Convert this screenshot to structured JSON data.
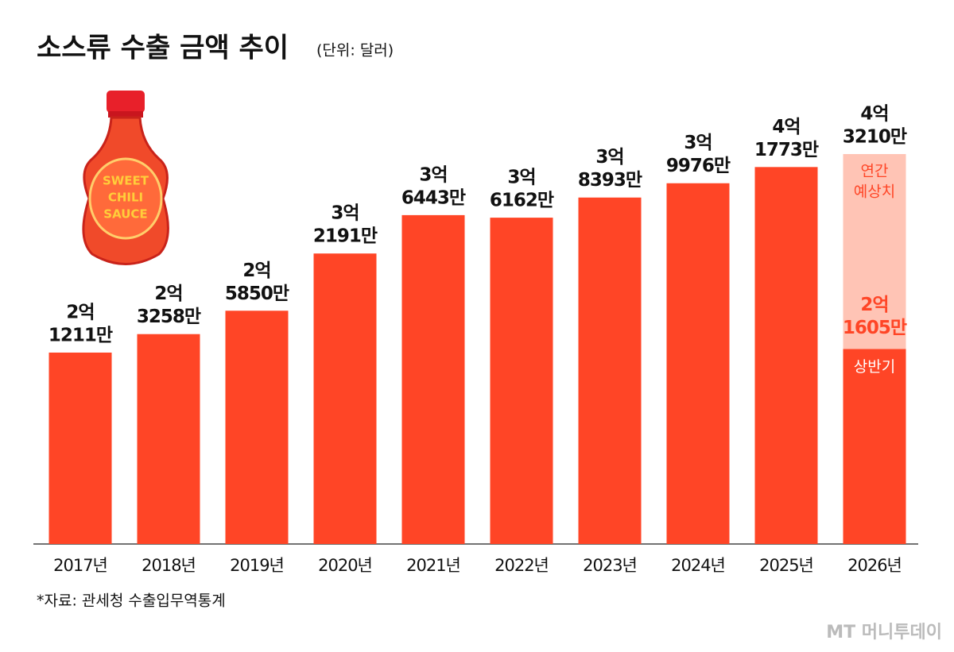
{
  "chart_data": {
    "type": "bar",
    "title": "소스류 수출 금액 추이",
    "subtitle": "(단위: 달러)",
    "source": "*자료: 관세청 수출입무역통계",
    "watermark": "MT 머니투데이",
    "bottle_text": [
      "SWEET",
      "CHILI",
      "SAUCE"
    ],
    "categories": [
      "2017년",
      "2018년",
      "2019년",
      "2020년",
      "2021년",
      "2022년",
      "2023년",
      "2024년",
      "2025년",
      "2026년"
    ],
    "values": [
      212110000,
      232580000,
      258500000,
      321910000,
      364430000,
      361620000,
      383930000,
      399760000,
      417730000,
      432100000
    ],
    "value_labels": [
      [
        "2억",
        "1211만"
      ],
      [
        "2억",
        "3258만"
      ],
      [
        "2억",
        "5850만"
      ],
      [
        "3억",
        "2191만"
      ],
      [
        "3억",
        "6443만"
      ],
      [
        "3억",
        "6162만"
      ],
      [
        "3억",
        "8393만"
      ],
      [
        "3억",
        "9976만"
      ],
      [
        "4억",
        "1773만"
      ],
      [
        "4억",
        "3210만"
      ]
    ],
    "color": "#ff4526",
    "forecast": {
      "label": [
        "연간",
        "예상치"
      ],
      "color": "#ffc4b5",
      "first_half": {
        "value": 216050000,
        "value_label": [
          "2억",
          "1605만"
        ],
        "label": "상반기"
      }
    }
  }
}
